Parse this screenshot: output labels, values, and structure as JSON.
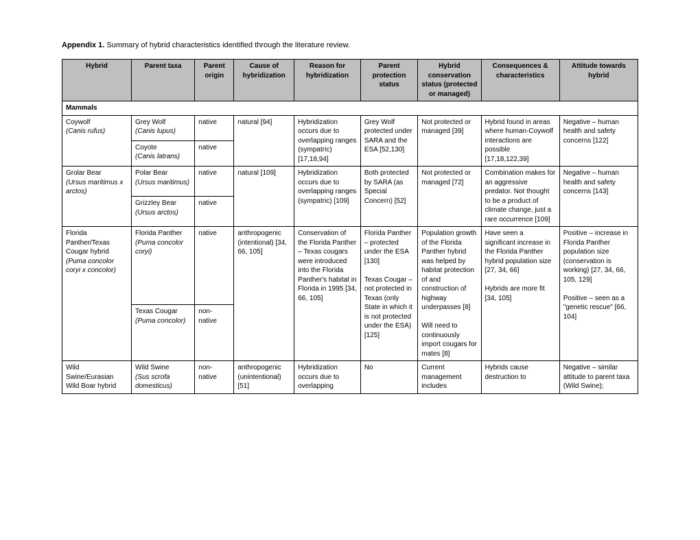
{
  "caption_bold": "Appendix 1.",
  "caption_rest": " Summary of hybrid characteristics identified through the literature review.",
  "headers": [
    "Hybrid",
    "Parent taxa",
    "Parent origin",
    "Cause of hybridization",
    "Reason for hybridization",
    "Parent protection status",
    "Hybrid conservation status (protected or managed)",
    "Consequences & characteristics",
    "Attitude towards hybrid"
  ],
  "section": "Mammals",
  "style": {
    "header_bg": "#bfbfbf",
    "border_color": "#000000",
    "background": "#ffffff",
    "font_family": "Verdana, Geneva, sans-serif",
    "base_font_size_pt": 8,
    "caption_font_size_pt": 8.5,
    "col_widths_pct": [
      11.5,
      10.5,
      6.5,
      10,
      11,
      9.5,
      10.5,
      13,
      13
    ]
  },
  "rows": {
    "coywolf": {
      "hybrid_name": "Coywolf",
      "hybrid_sci": "(Canis rufus)",
      "p1_name": "Grey Wolf",
      "p1_sci": "(Canis lupus)",
      "p1_origin": "native",
      "p2_name": "Coyote",
      "p2_sci": "(Canis latrans)",
      "p2_origin": "native",
      "cause": "natural [94]",
      "reason": "Hybridization occurs due to overlapping ranges (sympatric) [17,18,94]",
      "protection": "Grey Wolf protected under SARA and the ESA [52,130]",
      "status": "Not protected or managed [39]",
      "consequences": "Hybrid found in areas where human-Coywolf interactions are possible [17,18,122,39]",
      "attitude": "Negative – human health and safety concerns [122]"
    },
    "grolar": {
      "hybrid_name": "Grolar Bear",
      "hybrid_sci": "(Ursus maritimus x arctos)",
      "p1_name": "Polar Bear",
      "p1_sci": "(Ursus maritimus)",
      "p1_origin": "native",
      "p2_name": "Grizzley Bear",
      "p2_sci": "(Ursus arctos)",
      "p2_origin": "native",
      "cause": "natural [109]",
      "reason": "Hybridization occurs due to overlapping ranges (sympatric) [109]",
      "protection": "Both protected by SARA (as Special Concern) [52]",
      "status": "Not protected or managed [72]",
      "consequences": "Combination makes for an aggressive predator. Not thought to be a product of climate change, just a rare occurrence [109]",
      "attitude": "Negative – human health and safety concerns [143]"
    },
    "panther": {
      "hybrid_name": "Florida Panther/Texas Cougar hybrid",
      "hybrid_sci": "(Puma concolor coryi x concolor)",
      "p1_name": "Florida Panther",
      "p1_sci": "(Puma concolor coryi)",
      "p1_origin": "native",
      "p2_name": "Texas Cougar",
      "p2_sci": "(Puma concolor)",
      "p2_origin": "non-native",
      "cause": "anthropogenic (intentional) [34, 66, 105]",
      "reason": "Conservation of the Florida Panther – Texas cougars were introduced into the Florida Panther's habitat in Florida in 1995 [34, 66, 105]",
      "protection_a": "Florida Panther – protected under the ESA [130]",
      "protection_b": "Texas Cougar – not protected in Texas (only State in which it is not protected under the ESA) [125]",
      "status_a": "Population growth of the Florida Panther hybrid was helped by habitat protection of and construction of highway underpasses [8]",
      "status_b": "Will need to continuously import cougars for mates [8]",
      "consequences_a": "Have seen a significant increase in the Florida Panther hybrid population size [27, 34, 66]",
      "consequences_b": "Hybrids are more fit [34, 105]",
      "attitude_a": "Positive – increase in Florida Panther population size (conservation is working) [27, 34, 66, 105, 129]",
      "attitude_b": "Positive – seen as a \"genetic rescue\" [66, 104]"
    },
    "swine": {
      "hybrid_name": "Wild Swine/Eurasian Wild Boar hybrid",
      "p1_name": "Wild Swine",
      "p1_sci": "(Sus scrofa domesticus)",
      "p1_origin": "non-native",
      "cause": "anthropogenic (unintentional) [51]",
      "reason": "Hybridization occurs due to overlapping",
      "protection": "No",
      "status": "Current management includes",
      "consequences": "Hybrids cause destruction to",
      "attitude": "Negative – similar attitude to parent taxa (Wild Swine);"
    }
  }
}
